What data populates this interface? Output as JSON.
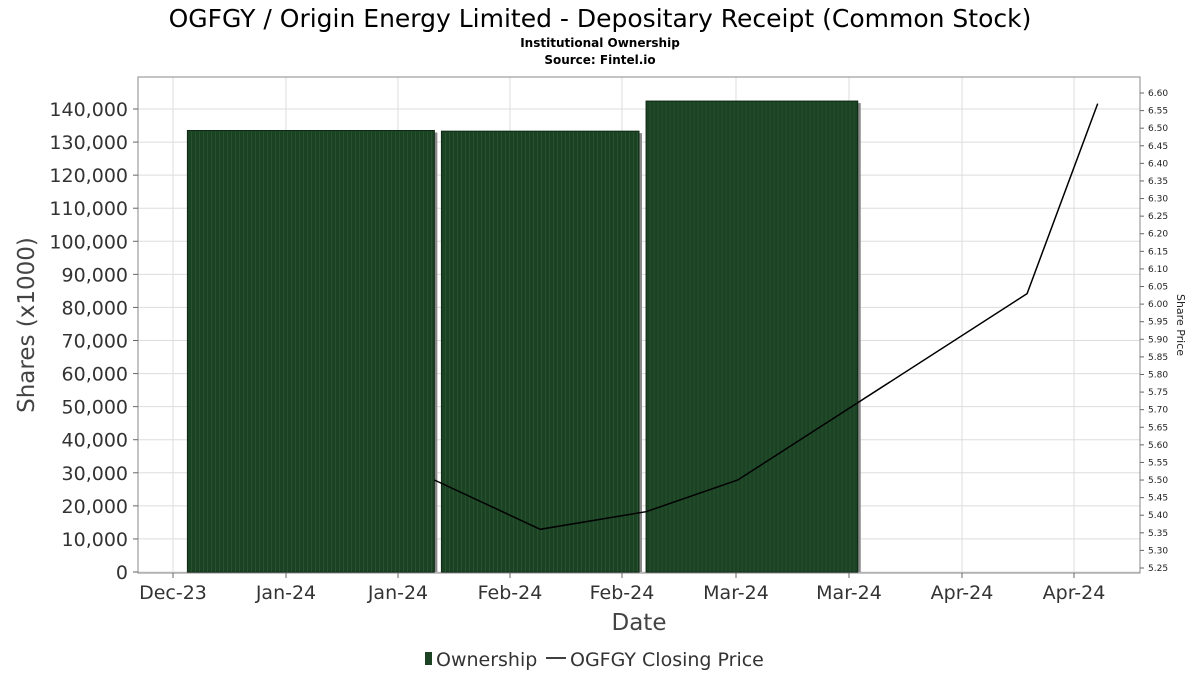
{
  "chart_data": {
    "type": "bar",
    "title": "OGFGY / Origin Energy Limited - Depositary Receipt (Common Stock)",
    "subtitle": "Institutional Ownership",
    "source": "Source: Fintel.io",
    "xlabel": "Date",
    "ylabel": "Shares (x1000)",
    "y2label": "Share Price",
    "ylim": [
      0,
      148000
    ],
    "y2lim": [
      5.235,
      6.635
    ],
    "grid": true,
    "x_tick_labels": [
      "Dec-23",
      "Jan-24",
      "Jan-24",
      "Feb-24",
      "Feb-24",
      "Mar-24",
      "Mar-24",
      "Apr-24",
      "Apr-24"
    ],
    "y_ticks": [
      0,
      10000,
      20000,
      30000,
      40000,
      50000,
      60000,
      70000,
      80000,
      90000,
      100000,
      110000,
      120000,
      130000,
      140000
    ],
    "y_tick_labels": [
      "0",
      "10,000",
      "20,000",
      "30,000",
      "40,000",
      "50,000",
      "60,000",
      "70,000",
      "80,000",
      "90,000",
      "100,000",
      "110,000",
      "120,000",
      "130,000",
      "140,000"
    ],
    "y2_ticks": [
      5.25,
      5.3,
      5.35,
      5.4,
      5.45,
      5.5,
      5.55,
      5.6,
      5.65,
      5.7,
      5.75,
      5.8,
      5.85,
      5.9,
      5.95,
      6.0,
      6.05,
      6.1,
      6.15,
      6.2,
      6.25,
      6.3,
      6.35,
      6.4,
      6.45,
      6.5,
      6.55,
      6.6
    ],
    "y2_tick_labels": [
      "5.25",
      "5.30",
      "5.35",
      "5.40",
      "5.45",
      "5.50",
      "5.55",
      "5.60",
      "5.65",
      "5.70",
      "5.75",
      "5.80",
      "5.85",
      "5.90",
      "5.95",
      "6.00",
      "6.05",
      "6.10",
      "6.15",
      "6.20",
      "6.25",
      "6.30",
      "6.35",
      "6.40",
      "6.45",
      "6.50",
      "6.55",
      "6.60"
    ],
    "bars": [
      {
        "start": "2023-12-27",
        "end": "2024-01-31",
        "value": 133500
      },
      {
        "start": "2024-02-01",
        "end": "2024-02-29",
        "value": 133300
      },
      {
        "start": "2024-03-01",
        "end": "2024-03-31",
        "value": 142400
      }
    ],
    "series": [
      {
        "name": "Ownership",
        "kind": "bar",
        "color": "#1a4223"
      },
      {
        "name": "OGFGY Closing Price",
        "kind": "line",
        "color": "#000000",
        "x": [
          "2024-01-31",
          "2024-02-15",
          "2024-03-01",
          "2024-03-14",
          "2024-04-24",
          "2024-05-04"
        ],
        "values": [
          5.5,
          5.36,
          5.41,
          5.5,
          6.03,
          6.57
        ]
      }
    ],
    "legend_position": "bottom-center",
    "colors": {
      "bar": "#1a4223",
      "bar_shadow": "#8a8a8a",
      "line": "#000000",
      "grid": "#dddddd",
      "plot_border": "#888888"
    }
  }
}
